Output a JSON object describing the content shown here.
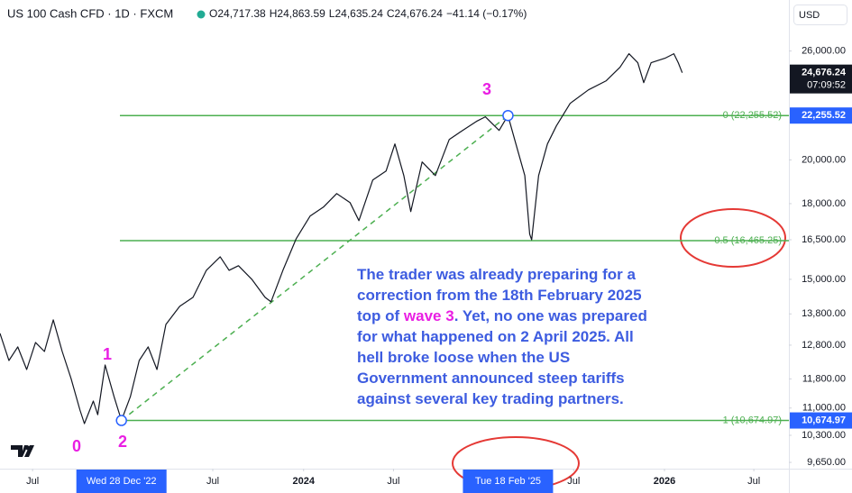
{
  "chart_data": {
    "type": "line",
    "title": "US 100 Cash CFD · 1D · FXCM",
    "ohlc": [
      {
        "label": "O",
        "value": "24,717.38"
      },
      {
        "label": "H",
        "value": "24,863.59"
      },
      {
        "label": "L",
        "value": "24,635.24"
      },
      {
        "label": "C",
        "value": "24,676.24"
      }
    ],
    "change": "−41.14 (−0.17%)",
    "currency": "USD",
    "color": "#131722",
    "yscale": "log",
    "ylim": [
      9505,
      29400
    ],
    "yticks": [
      {
        "value": 26000,
        "label": "26,000.00"
      },
      {
        "value": 20000,
        "label": "20,000.00"
      },
      {
        "value": 18000,
        "label": "18,000.00"
      },
      {
        "value": 16500,
        "label": "16,500.00"
      },
      {
        "value": 15000,
        "label": "15,000.00"
      },
      {
        "value": 13800,
        "label": "13,800.00"
      },
      {
        "value": 12800,
        "label": "12,800.00"
      },
      {
        "value": 11800,
        "label": "11,800.00"
      },
      {
        "value": 11000,
        "label": "11,000.00"
      },
      {
        "value": 10300,
        "label": "10,300.00"
      },
      {
        "value": 9650,
        "label": "9,650.00"
      }
    ],
    "xlim": [
      "2022-04-26",
      "2026-09-10"
    ],
    "xticks": [
      {
        "value": "2022-07-01",
        "label": "Jul"
      },
      {
        "value": "2023-07-01",
        "label": "Jul"
      },
      {
        "value": "2024-01-01",
        "label": "2024"
      },
      {
        "value": "2024-07-01",
        "label": "Jul"
      },
      {
        "value": "2025-07-01",
        "label": "Jul"
      },
      {
        "value": "2026-01-01",
        "label": "2026"
      },
      {
        "value": "2026-07-01",
        "label": "Jul"
      }
    ],
    "x_highlights": [
      {
        "value": "2022-12-28",
        "label": "Wed 28 Dec '22"
      },
      {
        "value": "2025-02-18",
        "label": "Tue 18 Feb '25"
      }
    ],
    "x": [
      "2022-04-26",
      "2022-05-14",
      "2022-06-01",
      "2022-06-19",
      "2022-07-07",
      "2022-07-25",
      "2022-08-12",
      "2022-08-30",
      "2022-09-17",
      "2022-10-05",
      "2022-10-14",
      "2022-11-01",
      "2022-11-10",
      "2022-11-25",
      "2022-12-13",
      "2022-12-28",
      "2023-01-15",
      "2023-02-02",
      "2023-02-20",
      "2023-03-10",
      "2023-03-28",
      "2023-04-25",
      "2023-05-22",
      "2023-06-18",
      "2023-07-16",
      "2023-08-03",
      "2023-08-22",
      "2023-09-18",
      "2023-10-15",
      "2023-10-27",
      "2023-11-20",
      "2023-12-17",
      "2024-01-14",
      "2024-02-10",
      "2024-03-08",
      "2024-04-04",
      "2024-04-22",
      "2024-05-20",
      "2024-06-16",
      "2024-07-04",
      "2024-07-22",
      "2024-08-05",
      "2024-08-28",
      "2024-09-24",
      "2024-10-22",
      "2024-11-18",
      "2024-12-16",
      "2025-01-03",
      "2025-01-31",
      "2025-02-18",
      "2025-03-06",
      "2025-03-24",
      "2025-04-03",
      "2025-04-07",
      "2025-04-21",
      "2025-05-09",
      "2025-05-27",
      "2025-06-24",
      "2025-07-31",
      "2025-09-05",
      "2025-10-03",
      "2025-10-21",
      "2025-11-08",
      "2025-11-20",
      "2025-12-05",
      "2026-01-02",
      "2026-01-20",
      "2026-01-29",
      "2026-02-06"
    ],
    "values": [
      13167,
      12334,
      12745,
      12069,
      12883,
      12605,
      13603,
      12605,
      11812,
      10946,
      10595,
      11185,
      10826,
      12202,
      11307,
      10675,
      11307,
      12334,
      12745,
      12069,
      13455,
      14053,
      14362,
      15330,
      15837,
      15330,
      15499,
      15000,
      14362,
      14207,
      15330,
      16541,
      17467,
      17849,
      18442,
      18047,
      17277,
      19053,
      19471,
      20784,
      19261,
      17657,
      19900,
      19261,
      21011,
      21473,
      21944,
      22186,
      21473,
      22255.52,
      20784,
      19261,
      16723,
      16500,
      19261,
      20784,
      21707,
      22919,
      23678,
      24200,
      25002,
      25831,
      25275,
      24094,
      25275,
      25550,
      25831,
      25275,
      24676.24
    ],
    "fib_levels": [
      {
        "value": 22255.52,
        "label": "0 (22,255.52)",
        "axis_label": "22,255.52"
      },
      {
        "value": 16465.25,
        "label": "0.5 (16,465.25)"
      },
      {
        "value": 10674.97,
        "label": "1 (10,674.97)",
        "axis_label": "10,674.97"
      }
    ],
    "fib_color": "#4caf50",
    "waves": [
      "0",
      "1",
      "2",
      "3"
    ],
    "last_price": {
      "value": 24676.24,
      "label": "24,676.24",
      "countdown": "07:09:52"
    },
    "annotation": [
      [
        {
          "text": "The trader was already preparing for a"
        }
      ],
      [
        {
          "text": "correction from the 18th February 2025"
        }
      ],
      [
        {
          "text": "top of "
        },
        {
          "text": "wave 3",
          "color": "#e91ee3"
        },
        {
          "text": ". Yet, no one was prepared"
        }
      ],
      [
        {
          "text": "for what happened on 2 April 2025. All"
        }
      ],
      [
        {
          "text": "hell broke loose when the US"
        }
      ],
      [
        {
          "text": "Government announced steep tariffs"
        }
      ],
      [
        {
          "text": "against several key trading partners."
        }
      ]
    ]
  }
}
